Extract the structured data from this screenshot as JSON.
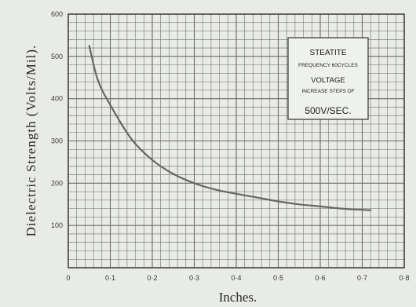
{
  "chart_data": {
    "type": "line",
    "xlabel": "Inches.",
    "ylabel": "Dielectric Strength (Volts/Mil).",
    "xlim": [
      0,
      0.8
    ],
    "ylim": [
      0,
      600
    ],
    "x_ticks": [
      "0",
      "0·1",
      "0·2",
      "0·3",
      "0·4",
      "0·5",
      "0·6",
      "0·7",
      "0·8"
    ],
    "y_ticks": [
      "600",
      "500",
      "400",
      "300",
      "200",
      "100"
    ],
    "grid": true,
    "series": [
      {
        "x": [
          0.05,
          0.07,
          0.1,
          0.15,
          0.2,
          0.25,
          0.3,
          0.35,
          0.4,
          0.45,
          0.5,
          0.55,
          0.6,
          0.65,
          0.7,
          0.72
        ],
        "y": [
          525,
          445,
          385,
          305,
          255,
          222,
          200,
          185,
          175,
          166,
          157,
          150,
          145,
          140,
          137,
          136
        ]
      }
    ],
    "annotation": {
      "lines": [
        "STEATITE",
        "FREQUENCY 60CYCLES",
        "VOLTAGE",
        "INCREASE STEPS OF",
        "500V/SEC."
      ]
    }
  }
}
